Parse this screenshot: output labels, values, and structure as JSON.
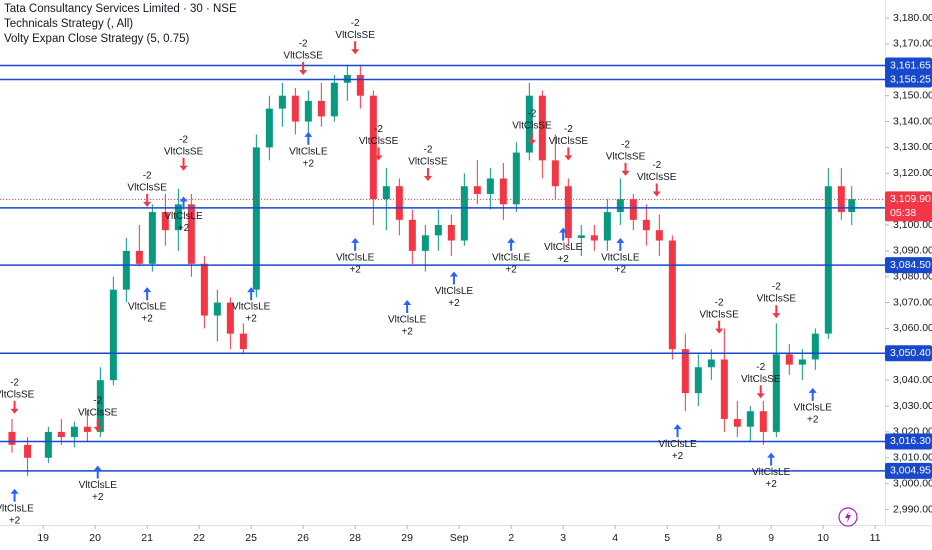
{
  "chart_data": {
    "type": "candlestick",
    "title_lines": [
      "Tata Consultancy Services Limited · 30 · NSE",
      "Technicals Strategy (, All)",
      "Volty Expan Close Strategy (5, 0.75)"
    ],
    "up_color": "#089981",
    "down_color": "#f23645",
    "line_color": "#1848cc",
    "xlim": [
      0.17,
      17.19
    ],
    "ylim": [
      2984,
      3187
    ],
    "xticks": [
      {
        "value": 1,
        "label": "19"
      },
      {
        "value": 2,
        "label": "20"
      },
      {
        "value": 3,
        "label": "21"
      },
      {
        "value": 4,
        "label": "22"
      },
      {
        "value": 5,
        "label": "25"
      },
      {
        "value": 6,
        "label": "26"
      },
      {
        "value": 7,
        "label": "28"
      },
      {
        "value": 8,
        "label": "29"
      },
      {
        "value": 9,
        "label": "Sep"
      },
      {
        "value": 10,
        "label": "2"
      },
      {
        "value": 11,
        "label": "3"
      },
      {
        "value": 12,
        "label": "4"
      },
      {
        "value": 13,
        "label": "5"
      },
      {
        "value": 14,
        "label": "8"
      },
      {
        "value": 15,
        "label": "9"
      },
      {
        "value": 16,
        "label": "10"
      },
      {
        "value": 17,
        "label": "11"
      }
    ],
    "yticks": [
      {
        "value": 2990,
        "label": "2,990.00"
      },
      {
        "value": 3000,
        "label": "3,000.00"
      },
      {
        "value": 3010,
        "label": "3,010.00"
      },
      {
        "value": 3020,
        "label": "3,020.00"
      },
      {
        "value": 3030,
        "label": "3,030.00"
      },
      {
        "value": 3040,
        "label": "3,040.00"
      },
      {
        "value": 3050,
        "label": "3,050.00"
      },
      {
        "value": 3060,
        "label": "3,060.00"
      },
      {
        "value": 3070,
        "label": "3,070.00"
      },
      {
        "value": 3080,
        "label": "3,080.00"
      },
      {
        "value": 3090,
        "label": "3,090.00"
      },
      {
        "value": 3100,
        "label": "3,100.00"
      },
      {
        "value": 3110,
        "label": "3,110.00"
      },
      {
        "value": 3120,
        "label": "3,120.00"
      },
      {
        "value": 3130,
        "label": "3,130.00"
      },
      {
        "value": 3140,
        "label": "3,140.00"
      },
      {
        "value": 3150,
        "label": "3,150.00"
      },
      {
        "value": 3160,
        "label": "3,160.00"
      },
      {
        "value": 3170,
        "label": "3,170.00"
      },
      {
        "value": 3180,
        "label": "3,180.00"
      }
    ],
    "price_lines": [
      {
        "value": 3161.65,
        "label": "3,161.65"
      },
      {
        "value": 3156.25,
        "label": "3,156.25"
      },
      {
        "value": 3106.6,
        "label": "3,106.60"
      },
      {
        "value": 3084.5,
        "label": "3,084.50"
      },
      {
        "value": 3050.4,
        "label": "3,050.40"
      },
      {
        "value": 3016.3,
        "label": "3,016.30"
      },
      {
        "value": 3004.95,
        "label": "3,004.95"
      }
    ],
    "last_price": {
      "value": 3109.9,
      "label": "3,109.90"
    },
    "countdown": "05:38",
    "candles": {
      "x": [
        0.4,
        0.7,
        1.1,
        1.35,
        1.6,
        1.85,
        2.1,
        2.35,
        2.6,
        2.85,
        3.1,
        3.35,
        3.6,
        3.85,
        4.1,
        4.35,
        4.6,
        4.85,
        5.1,
        5.35,
        5.6,
        5.85,
        6.1,
        6.35,
        6.6,
        6.85,
        7.1,
        7.35,
        7.6,
        7.85,
        8.1,
        8.35,
        8.6,
        8.85,
        9.1,
        9.35,
        9.6,
        9.85,
        10.1,
        10.35,
        10.6,
        10.85,
        11.1,
        11.35,
        11.6,
        11.85,
        12.1,
        12.35,
        12.6,
        12.85,
        13.1,
        13.35,
        13.6,
        13.85,
        14.1,
        14.35,
        14.6,
        14.85,
        15.1,
        15.35,
        15.6,
        15.85,
        16.1,
        16.35,
        16.55
      ],
      "open": [
        3020,
        3015,
        3010,
        3020,
        3018,
        3022,
        3020,
        3040,
        3075,
        3090,
        3085,
        3105,
        3098,
        3108,
        3085,
        3065,
        3070,
        3058,
        3075,
        3130,
        3145,
        3150,
        3140,
        3148,
        3142,
        3155,
        3158,
        3150,
        3110,
        3115,
        3102,
        3090,
        3096,
        3100,
        3094,
        3115,
        3112,
        3118,
        3108,
        3128,
        3150,
        3125,
        3115,
        3095,
        3096,
        3094,
        3105,
        3110,
        3102,
        3098,
        3094,
        3052,
        3035,
        3045,
        3048,
        3025,
        3022,
        3028,
        3020,
        3050,
        3046,
        3048,
        3058,
        3115,
        3105
      ],
      "high": [
        3025,
        3018,
        3022,
        3025,
        3024,
        3028,
        3045,
        3080,
        3095,
        3100,
        3108,
        3112,
        3114,
        3112,
        3088,
        3075,
        3072,
        3062,
        3135,
        3150,
        3155,
        3153,
        3152,
        3155,
        3158,
        3162,
        3162,
        3152,
        3122,
        3118,
        3106,
        3100,
        3106,
        3104,
        3120,
        3125,
        3122,
        3124,
        3132,
        3155,
        3152,
        3135,
        3118,
        3100,
        3100,
        3110,
        3118,
        3112,
        3108,
        3104,
        3096,
        3058,
        3050,
        3052,
        3060,
        3032,
        3030,
        3032,
        3062,
        3054,
        3052,
        3060,
        3122,
        3122,
        3115
      ],
      "low": [
        3012,
        3003,
        3008,
        3015,
        3014,
        3016,
        3018,
        3038,
        3070,
        3084,
        3082,
        3092,
        3090,
        3080,
        3060,
        3055,
        3052,
        3050,
        3072,
        3125,
        3138,
        3135,
        3132,
        3138,
        3140,
        3148,
        3145,
        3100,
        3098,
        3096,
        3085,
        3082,
        3090,
        3088,
        3092,
        3108,
        3106,
        3102,
        3105,
        3125,
        3118,
        3110,
        3092,
        3088,
        3090,
        3090,
        3100,
        3098,
        3092,
        3088,
        3048,
        3028,
        3030,
        3040,
        3020,
        3018,
        3016,
        3015,
        3018,
        3042,
        3040,
        3044,
        3056,
        3102,
        3100
      ],
      "close": [
        3015,
        3010,
        3020,
        3018,
        3022,
        3020,
        3040,
        3075,
        3090,
        3085,
        3105,
        3098,
        3108,
        3085,
        3065,
        3070,
        3058,
        3052,
        3130,
        3145,
        3150,
        3140,
        3148,
        3142,
        3155,
        3158,
        3150,
        3110,
        3115,
        3102,
        3090,
        3096,
        3100,
        3094,
        3115,
        3112,
        3118,
        3108,
        3128,
        3150,
        3125,
        3115,
        3095,
        3096,
        3094,
        3105,
        3110,
        3102,
        3098,
        3094,
        3052,
        3035,
        3045,
        3048,
        3025,
        3022,
        3028,
        3020,
        3050,
        3046,
        3048,
        3058,
        3115,
        3105,
        3110
      ]
    },
    "signals": [
      {
        "x": 0.45,
        "price": 3027,
        "qty": "-2",
        "label": "VltClsSE"
      },
      {
        "x": 2.05,
        "price": 3020,
        "qty": "-2",
        "label": "VltClsSE"
      },
      {
        "x": 3.0,
        "price": 3107,
        "qty": "-2",
        "label": "VltClsSE"
      },
      {
        "x": 3.7,
        "price": 3121,
        "qty": "-2",
        "label": "VltClsSE"
      },
      {
        "x": 6.0,
        "price": 3158,
        "qty": "-2",
        "label": "VltClsSE"
      },
      {
        "x": 7.0,
        "price": 3166,
        "qty": "-2",
        "label": "VltClsSE"
      },
      {
        "x": 7.45,
        "price": 3125,
        "qty": "-2",
        "label": "VltClsSE"
      },
      {
        "x": 8.4,
        "price": 3117,
        "qty": "-2",
        "label": "VltClsSE"
      },
      {
        "x": 10.4,
        "price": 3131,
        "qty": "-2",
        "label": "VltClsSE"
      },
      {
        "x": 11.1,
        "price": 3125,
        "qty": "-2",
        "label": "VltClsSE"
      },
      {
        "x": 12.2,
        "price": 3119,
        "qty": "-2",
        "label": "VltClsSE"
      },
      {
        "x": 12.8,
        "price": 3111,
        "qty": "-2",
        "label": "VltClsSE"
      },
      {
        "x": 14.0,
        "price": 3058,
        "qty": "-2",
        "label": "VltClsSE"
      },
      {
        "x": 14.8,
        "price": 3033,
        "qty": "-2",
        "label": "VltClsSE"
      },
      {
        "x": 15.1,
        "price": 3064,
        "qty": "-2",
        "label": "VltClsSE"
      },
      {
        "x": 0.45,
        "price": 2998,
        "qty": "+2",
        "label": "VltClsLE"
      },
      {
        "x": 2.05,
        "price": 3007,
        "qty": "+2",
        "label": "VltClsLE"
      },
      {
        "x": 3.0,
        "price": 3076,
        "qty": "+2",
        "label": "VltClsLE"
      },
      {
        "x": 3.7,
        "price": 3111,
        "qty": "+2",
        "label": "VltClsLE"
      },
      {
        "x": 5.0,
        "price": 3076,
        "qty": "+2",
        "label": "VltClsLE"
      },
      {
        "x": 6.1,
        "price": 3136,
        "qty": "+2",
        "label": "VltClsLE"
      },
      {
        "x": 7.0,
        "price": 3095,
        "qty": "+2",
        "label": "VltClsLE"
      },
      {
        "x": 8.0,
        "price": 3071,
        "qty": "+2",
        "label": "VltClsLE"
      },
      {
        "x": 8.9,
        "price": 3082,
        "qty": "+2",
        "label": "VltClsLE"
      },
      {
        "x": 10.0,
        "price": 3095,
        "qty": "+2",
        "label": "VltClsLE"
      },
      {
        "x": 11.0,
        "price": 3099,
        "qty": "+2",
        "label": "VltClsLE"
      },
      {
        "x": 12.1,
        "price": 3095,
        "qty": "+2",
        "label": "VltClsLE"
      },
      {
        "x": 13.2,
        "price": 3023,
        "qty": "+2",
        "label": "VltClsLE"
      },
      {
        "x": 15.0,
        "price": 3012,
        "qty": "+2",
        "label": "VltClsLE"
      },
      {
        "x": 15.8,
        "price": 3037,
        "qty": "+2",
        "label": "VltClsLE"
      }
    ]
  }
}
